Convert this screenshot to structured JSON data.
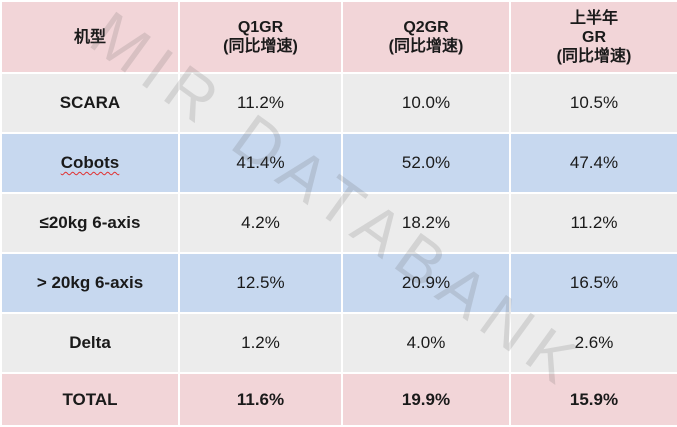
{
  "watermark": "MIR DATABANK",
  "header": {
    "model": "机型",
    "q1": [
      "Q1GR",
      "(同比增速)"
    ],
    "q2": [
      "Q2GR",
      "(同比增速)"
    ],
    "h1": [
      "上半年",
      "GR",
      "(同比增速)"
    ]
  },
  "rows": [
    {
      "name": "SCARA",
      "q1": "11.2%",
      "q2": "10.0%",
      "h1": "10.5%"
    },
    {
      "name": "Cobots",
      "q1": "41.4%",
      "q2": "52.0%",
      "h1": "47.4%"
    },
    {
      "name": "≤20kg 6-axis",
      "q1": "4.2%",
      "q2": "18.2%",
      "h1": "11.2%"
    },
    {
      "name": "> 20kg 6-axis",
      "q1": "12.5%",
      "q2": "20.9%",
      "h1": "16.5%"
    },
    {
      "name": "Delta",
      "q1": "1.2%",
      "q2": "4.0%",
      "h1": "2.6%"
    }
  ],
  "total": {
    "name": "TOTAL",
    "q1": "11.6%",
    "q2": "19.9%",
    "h1": "15.9%"
  },
  "colors": {
    "header_bg": "#f2d5d8",
    "row_gray": "#ececec",
    "row_blue": "#c7d8ef",
    "highlight_text": "#ee1b22"
  }
}
